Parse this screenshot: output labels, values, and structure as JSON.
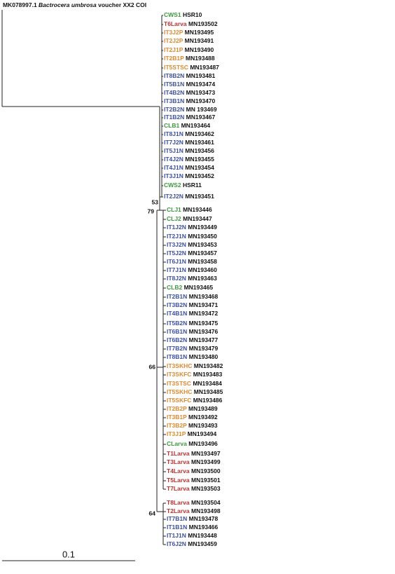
{
  "outgroup": {
    "accession": "MK078997.1",
    "species": "Bactrocera umbrosa",
    "description": "voucher XX2 COI"
  },
  "leaves": [
    {
      "name": "CWS1",
      "accession": "HSR10",
      "color": "#3a9a3a"
    },
    {
      "name": "T6Larva",
      "accession": "MN193502",
      "color": "#c0302f"
    },
    {
      "name": "IT3J2P",
      "accession": "MN193495",
      "color": "#e08a2c"
    },
    {
      "name": "IT2J2P",
      "accession": "MN193491",
      "color": "#e08a2c"
    },
    {
      "name": "IT2J1P",
      "accession": "MN193490",
      "color": "#e08a2c"
    },
    {
      "name": "IT2B1P",
      "accession": "MN193488",
      "color": "#e08a2c"
    },
    {
      "name": "IT5STSC",
      "accession": "MN193487",
      "color": "#e08a2c"
    },
    {
      "name": "IT8B2N",
      "accession": "MN193481",
      "color": "#3a4fa8"
    },
    {
      "name": "IT5B1N",
      "accession": "MN193474",
      "color": "#3a4fa8"
    },
    {
      "name": "IT4B2N",
      "accession": "MN193473",
      "color": "#3a4fa8"
    },
    {
      "name": "IT3B1N",
      "accession": "MN193470",
      "color": "#3a4fa8"
    },
    {
      "name": "IT2B2N",
      "accession": "MN 193469",
      "color": "#3a4fa8"
    },
    {
      "name": "IT1B2N",
      "accession": "MN193467",
      "color": "#3a4fa8"
    },
    {
      "name": "CLB1",
      "accession": "MN193464",
      "color": "#3a9a3a"
    },
    {
      "name": "IT8J1N",
      "accession": "MN193462",
      "color": "#3a4fa8"
    },
    {
      "name": "IT7J2N",
      "accession": "MN193461",
      "color": "#3a4fa8"
    },
    {
      "name": "IT5J1N",
      "accession": "MN193456",
      "color": "#3a4fa8"
    },
    {
      "name": "IT4J2N",
      "accession": "MN193455",
      "color": "#3a4fa8"
    },
    {
      "name": "IT4J1N",
      "accession": "MN193454",
      "color": "#3a4fa8"
    },
    {
      "name": "IT3J1N",
      "accession": "MN193452",
      "color": "#3a4fa8"
    },
    {
      "name": "CWS2",
      "accession": "HSR11",
      "color": "#3a9a3a"
    },
    {
      "name": "IT2J2N",
      "accession": "MN193451",
      "color": "#3a4fa8"
    },
    {
      "name": "CLJ1",
      "accession": "MN193446",
      "color": "#3a9a3a"
    },
    {
      "name": "CLJ2",
      "accession": "MN193447",
      "color": "#3a9a3a"
    },
    {
      "name": "IT1J2N",
      "accession": "MN193449",
      "color": "#3a4fa8"
    },
    {
      "name": "IT2J1N",
      "accession": "MN193450",
      "color": "#3a4fa8"
    },
    {
      "name": "IT3J2N",
      "accession": "MN193453",
      "color": "#3a4fa8"
    },
    {
      "name": "IT5J2N",
      "accession": "MN193457",
      "color": "#3a4fa8"
    },
    {
      "name": "IT6J1N",
      "accession": "MN193458",
      "color": "#3a4fa8"
    },
    {
      "name": "IT7J1N",
      "accession": "MN193460",
      "color": "#3a4fa8"
    },
    {
      "name": "IT8J2N",
      "accession": "MN193463",
      "color": "#3a4fa8"
    },
    {
      "name": "CLB2",
      "accession": "MN193465",
      "color": "#3a9a3a"
    },
    {
      "name": "IT2B1N",
      "accession": "MN193468",
      "color": "#3a4fa8"
    },
    {
      "name": "IT3B2N",
      "accession": "MN193471",
      "color": "#3a4fa8"
    },
    {
      "name": "IT4B1N",
      "accession": "MN193472",
      "color": "#3a4fa8"
    },
    {
      "name": "IT5B2N",
      "accession": "MN193475",
      "color": "#3a4fa8"
    },
    {
      "name": "IT6B1N",
      "accession": "MN193476",
      "color": "#3a4fa8"
    },
    {
      "name": "IT6B2N",
      "accession": "MN193477",
      "color": "#3a4fa8"
    },
    {
      "name": "IT7B2N",
      "accession": "MN193479",
      "color": "#3a4fa8"
    },
    {
      "name": "IT8B1N",
      "accession": "MN193480",
      "color": "#3a4fa8"
    },
    {
      "name": "IT3SKHC",
      "accession": "MN193482",
      "color": "#e08a2c"
    },
    {
      "name": "IT3SKFC",
      "accession": "MN193483",
      "color": "#e08a2c"
    },
    {
      "name": "IT3STSC",
      "accession": "MN193484",
      "color": "#e08a2c"
    },
    {
      "name": "IT5SKHC",
      "accession": "MN193485",
      "color": "#e08a2c"
    },
    {
      "name": "IT5SKFC",
      "accession": "MN193486",
      "color": "#e08a2c"
    },
    {
      "name": "IT2B2P",
      "accession": "MN193489",
      "color": "#e08a2c"
    },
    {
      "name": "IT3B1P",
      "accession": "MN193492",
      "color": "#e08a2c"
    },
    {
      "name": "IT3B2P",
      "accession": "MN193493",
      "color": "#e08a2c"
    },
    {
      "name": "IT3J1P",
      "accession": "MN193494",
      "color": "#e08a2c"
    },
    {
      "name": "CLarva",
      "accession": "MN193496",
      "color": "#3a9a3a"
    },
    {
      "name": "T1Larva",
      "accession": "MN193497",
      "color": "#c0302f"
    },
    {
      "name": "T3Larva",
      "accession": "MN193499",
      "color": "#c0302f"
    },
    {
      "name": "T4Larva",
      "accession": "MN193500",
      "color": "#c0302f"
    },
    {
      "name": "T5Larva",
      "accession": "MN193501",
      "color": "#c0302f"
    },
    {
      "name": "T7Larva",
      "accession": "MN193503",
      "color": "#c0302f"
    },
    {
      "name": "T8Larva",
      "accession": "MN193504",
      "color": "#c0302f"
    },
    {
      "name": "T2Larva",
      "accession": "MN193498",
      "color": "#c0302f"
    },
    {
      "name": "IT7B1N",
      "accession": "MN193478",
      "color": "#3a4fa8"
    },
    {
      "name": "IT1B1N",
      "accession": "MN193466",
      "color": "#3a4fa8"
    },
    {
      "name": "IT1J1N",
      "accession": "MN193448",
      "color": "#3a4fa8"
    },
    {
      "name": "IT6J2N",
      "accession": "MN193459",
      "color": "#3a4fa8"
    }
  ],
  "bootstrap": [
    53,
    79,
    66,
    64
  ],
  "scale_label": "0.1"
}
